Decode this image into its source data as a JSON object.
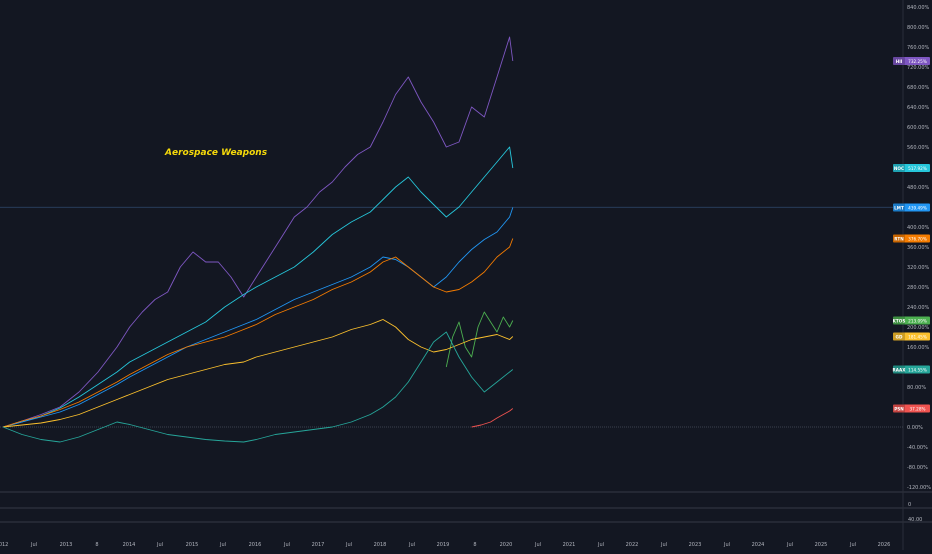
{
  "chart_data": {
    "type": "line",
    "annotation": "Aerospace Weapons",
    "y_axis": {
      "unit": "%",
      "ylim": [
        -140,
        860
      ],
      "ticks": [
        "840.00%",
        "800.00%",
        "760.00%",
        "720.00%",
        "680.00%",
        "640.00%",
        "600.00%",
        "560.00%",
        "480.00%",
        "400.00%",
        "360.00%",
        "320.00%",
        "280.00%",
        "240.00%",
        "200.00%",
        "160.00%",
        "80.00%",
        "40.00%",
        "0.00%",
        "-40.00%",
        "-80.00%",
        "-120.00%"
      ]
    },
    "x_axis": {
      "labels": [
        "2012",
        "Jul",
        "2013",
        "8",
        "2014",
        "Jul",
        "2015",
        "Jul",
        "2016",
        "Jul",
        "2017",
        "Jul",
        "2018",
        "Jul",
        "2019",
        "8",
        "2020",
        "Jul",
        "2021",
        "Jul",
        "2022",
        "Jul",
        "2023",
        "Jul",
        "2024",
        "Jul",
        "2025",
        "Jul",
        "2026"
      ]
    },
    "lower_panes": [
      {
        "ticks": [
          "0"
        ]
      },
      {
        "ticks": [
          "40.00"
        ]
      }
    ],
    "crosshair_value": 439.49,
    "series": [
      {
        "name": "HII",
        "value_label": "732.25%",
        "color": "#7e57c2",
        "points": [
          [
            2012.0,
            0
          ],
          [
            2012.3,
            12
          ],
          [
            2012.6,
            25
          ],
          [
            2012.9,
            40
          ],
          [
            2013.2,
            70
          ],
          [
            2013.5,
            110
          ],
          [
            2013.8,
            160
          ],
          [
            2014.0,
            200
          ],
          [
            2014.2,
            230
          ],
          [
            2014.4,
            255
          ],
          [
            2014.6,
            270
          ],
          [
            2014.8,
            320
          ],
          [
            2015.0,
            350
          ],
          [
            2015.2,
            330
          ],
          [
            2015.4,
            330
          ],
          [
            2015.6,
            300
          ],
          [
            2015.8,
            260
          ],
          [
            2016.0,
            300
          ],
          [
            2016.2,
            340
          ],
          [
            2016.4,
            380
          ],
          [
            2016.6,
            420
          ],
          [
            2016.8,
            440
          ],
          [
            2017.0,
            470
          ],
          [
            2017.2,
            490
          ],
          [
            2017.4,
            520
          ],
          [
            2017.6,
            545
          ],
          [
            2017.8,
            560
          ],
          [
            2018.0,
            610
          ],
          [
            2018.2,
            665
          ],
          [
            2018.4,
            700
          ],
          [
            2018.6,
            650
          ],
          [
            2018.8,
            610
          ],
          [
            2019.0,
            560
          ],
          [
            2019.2,
            570
          ],
          [
            2019.4,
            640
          ],
          [
            2019.6,
            620
          ],
          [
            2019.8,
            700
          ],
          [
            2020.0,
            780
          ],
          [
            2020.05,
            732
          ]
        ]
      },
      {
        "name": "NOC",
        "value_label": "517.92%",
        "color": "#26c6da",
        "points": [
          [
            2012.0,
            0
          ],
          [
            2012.3,
            10
          ],
          [
            2012.6,
            22
          ],
          [
            2012.9,
            38
          ],
          [
            2013.2,
            60
          ],
          [
            2013.5,
            85
          ],
          [
            2013.8,
            110
          ],
          [
            2014.0,
            130
          ],
          [
            2014.3,
            150
          ],
          [
            2014.6,
            170
          ],
          [
            2014.9,
            190
          ],
          [
            2015.2,
            210
          ],
          [
            2015.5,
            240
          ],
          [
            2015.8,
            265
          ],
          [
            2016.0,
            280
          ],
          [
            2016.3,
            300
          ],
          [
            2016.6,
            320
          ],
          [
            2016.9,
            350
          ],
          [
            2017.2,
            385
          ],
          [
            2017.5,
            410
          ],
          [
            2017.8,
            430
          ],
          [
            2018.0,
            455
          ],
          [
            2018.2,
            480
          ],
          [
            2018.4,
            500
          ],
          [
            2018.6,
            470
          ],
          [
            2018.8,
            445
          ],
          [
            2019.0,
            420
          ],
          [
            2019.2,
            440
          ],
          [
            2019.4,
            470
          ],
          [
            2019.6,
            500
          ],
          [
            2019.8,
            530
          ],
          [
            2020.0,
            560
          ],
          [
            2020.05,
            518
          ]
        ]
      },
      {
        "name": "LMT",
        "value_label": "439.49%",
        "color": "#2196f3",
        "points": [
          [
            2012.0,
            0
          ],
          [
            2012.3,
            10
          ],
          [
            2012.6,
            20
          ],
          [
            2012.9,
            30
          ],
          [
            2013.2,
            45
          ],
          [
            2013.5,
            65
          ],
          [
            2013.8,
            85
          ],
          [
            2014.0,
            100
          ],
          [
            2014.3,
            120
          ],
          [
            2014.6,
            140
          ],
          [
            2014.9,
            160
          ],
          [
            2015.2,
            175
          ],
          [
            2015.5,
            190
          ],
          [
            2015.8,
            205
          ],
          [
            2016.0,
            215
          ],
          [
            2016.3,
            235
          ],
          [
            2016.6,
            255
          ],
          [
            2016.9,
            270
          ],
          [
            2017.2,
            285
          ],
          [
            2017.5,
            300
          ],
          [
            2017.8,
            320
          ],
          [
            2018.0,
            340
          ],
          [
            2018.2,
            335
          ],
          [
            2018.4,
            320
          ],
          [
            2018.6,
            300
          ],
          [
            2018.8,
            280
          ],
          [
            2019.0,
            300
          ],
          [
            2019.2,
            330
          ],
          [
            2019.4,
            355
          ],
          [
            2019.6,
            375
          ],
          [
            2019.8,
            390
          ],
          [
            2020.0,
            420
          ],
          [
            2020.05,
            439
          ]
        ]
      },
      {
        "name": "RTN",
        "value_label": "376.70%",
        "color": "#f57c00",
        "points": [
          [
            2012.0,
            0
          ],
          [
            2012.3,
            12
          ],
          [
            2012.6,
            22
          ],
          [
            2012.9,
            35
          ],
          [
            2013.2,
            50
          ],
          [
            2013.5,
            70
          ],
          [
            2013.8,
            90
          ],
          [
            2014.0,
            105
          ],
          [
            2014.3,
            125
          ],
          [
            2014.6,
            145
          ],
          [
            2014.9,
            160
          ],
          [
            2015.2,
            170
          ],
          [
            2015.5,
            180
          ],
          [
            2015.8,
            195
          ],
          [
            2016.0,
            205
          ],
          [
            2016.3,
            225
          ],
          [
            2016.6,
            240
          ],
          [
            2016.9,
            255
          ],
          [
            2017.2,
            275
          ],
          [
            2017.5,
            290
          ],
          [
            2017.8,
            310
          ],
          [
            2018.0,
            330
          ],
          [
            2018.2,
            340
          ],
          [
            2018.4,
            320
          ],
          [
            2018.6,
            300
          ],
          [
            2018.8,
            280
          ],
          [
            2019.0,
            270
          ],
          [
            2019.2,
            275
          ],
          [
            2019.4,
            290
          ],
          [
            2019.6,
            310
          ],
          [
            2019.8,
            340
          ],
          [
            2020.0,
            360
          ],
          [
            2020.05,
            377
          ]
        ]
      },
      {
        "name": "KTOS",
        "value_label": "213.09%",
        "color": "#4caf50",
        "points": [
          [
            2019.0,
            120
          ],
          [
            2019.1,
            180
          ],
          [
            2019.2,
            210
          ],
          [
            2019.3,
            160
          ],
          [
            2019.4,
            140
          ],
          [
            2019.5,
            200
          ],
          [
            2019.6,
            230
          ],
          [
            2019.7,
            210
          ],
          [
            2019.8,
            190
          ],
          [
            2019.9,
            220
          ],
          [
            2020.0,
            200
          ],
          [
            2020.05,
            213
          ]
        ]
      },
      {
        "name": "GD",
        "value_label": "181.45%",
        "color": "#fbc02d",
        "points": [
          [
            2012.0,
            0
          ],
          [
            2012.3,
            4
          ],
          [
            2012.6,
            8
          ],
          [
            2012.9,
            15
          ],
          [
            2013.2,
            25
          ],
          [
            2013.5,
            40
          ],
          [
            2013.8,
            55
          ],
          [
            2014.0,
            65
          ],
          [
            2014.3,
            80
          ],
          [
            2014.6,
            95
          ],
          [
            2014.9,
            105
          ],
          [
            2015.2,
            115
          ],
          [
            2015.5,
            125
          ],
          [
            2015.8,
            130
          ],
          [
            2016.0,
            140
          ],
          [
            2016.3,
            150
          ],
          [
            2016.6,
            160
          ],
          [
            2016.9,
            170
          ],
          [
            2017.2,
            180
          ],
          [
            2017.5,
            195
          ],
          [
            2017.8,
            205
          ],
          [
            2018.0,
            215
          ],
          [
            2018.2,
            200
          ],
          [
            2018.4,
            175
          ],
          [
            2018.6,
            160
          ],
          [
            2018.8,
            150
          ],
          [
            2019.0,
            155
          ],
          [
            2019.2,
            165
          ],
          [
            2019.4,
            175
          ],
          [
            2019.6,
            180
          ],
          [
            2019.8,
            185
          ],
          [
            2020.0,
            175
          ],
          [
            2020.05,
            181
          ]
        ]
      },
      {
        "name": "RAAX",
        "value_label": "114.55%",
        "color": "#26a69a",
        "points": [
          [
            2012.0,
            0
          ],
          [
            2012.3,
            -15
          ],
          [
            2012.6,
            -25
          ],
          [
            2012.9,
            -30
          ],
          [
            2013.2,
            -20
          ],
          [
            2013.5,
            -5
          ],
          [
            2013.8,
            10
          ],
          [
            2014.0,
            5
          ],
          [
            2014.3,
            -5
          ],
          [
            2014.6,
            -15
          ],
          [
            2014.9,
            -20
          ],
          [
            2015.2,
            -25
          ],
          [
            2015.5,
            -28
          ],
          [
            2015.8,
            -30
          ],
          [
            2016.0,
            -25
          ],
          [
            2016.3,
            -15
          ],
          [
            2016.6,
            -10
          ],
          [
            2016.9,
            -5
          ],
          [
            2017.2,
            0
          ],
          [
            2017.5,
            10
          ],
          [
            2017.8,
            25
          ],
          [
            2018.0,
            40
          ],
          [
            2018.2,
            60
          ],
          [
            2018.4,
            90
          ],
          [
            2018.6,
            130
          ],
          [
            2018.8,
            170
          ],
          [
            2019.0,
            190
          ],
          [
            2019.2,
            140
          ],
          [
            2019.4,
            100
          ],
          [
            2019.6,
            70
          ],
          [
            2019.8,
            90
          ],
          [
            2020.0,
            110
          ],
          [
            2020.05,
            115
          ]
        ]
      },
      {
        "name": "PSN",
        "value_label": "37.28%",
        "color": "#ef5350",
        "points": [
          [
            2019.4,
            0
          ],
          [
            2019.55,
            4
          ],
          [
            2019.7,
            10
          ],
          [
            2019.8,
            18
          ],
          [
            2019.9,
            25
          ],
          [
            2020.0,
            32
          ],
          [
            2020.05,
            37
          ]
        ]
      }
    ]
  }
}
